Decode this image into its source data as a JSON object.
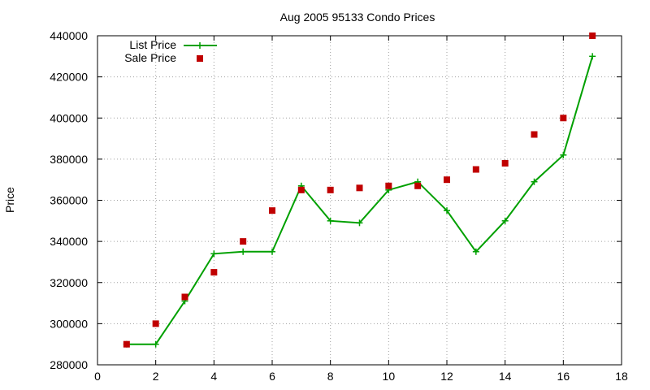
{
  "chart_data": {
    "type": "line",
    "title": "Aug 2005 95133 Condo Prices",
    "xlabel": "",
    "ylabel": "Price",
    "xlim": [
      0,
      18
    ],
    "ylim": [
      280000,
      440000
    ],
    "x_ticks": [
      0,
      2,
      4,
      6,
      8,
      10,
      12,
      14,
      16,
      18
    ],
    "y_ticks": [
      280000,
      300000,
      320000,
      340000,
      360000,
      380000,
      400000,
      420000,
      440000
    ],
    "grid": true,
    "legend_position": "top-left",
    "series": [
      {
        "name": "List Price",
        "style": "linespoints",
        "marker": "plus",
        "color": "#00a000",
        "x": [
          1,
          2,
          3,
          4,
          5,
          6,
          7,
          8,
          9,
          10,
          11,
          12,
          13,
          14,
          15,
          16,
          17
        ],
        "values": [
          290000,
          290000,
          311000,
          334000,
          335000,
          335000,
          367000,
          350000,
          349000,
          365000,
          369000,
          355000,
          335000,
          350000,
          369000,
          382000,
          430000
        ]
      },
      {
        "name": "Sale Price",
        "style": "points",
        "marker": "square",
        "color": "#c00000",
        "x": [
          1,
          2,
          3,
          4,
          5,
          6,
          7,
          8,
          9,
          10,
          11,
          12,
          13,
          14,
          15,
          16,
          17
        ],
        "values": [
          290000,
          300000,
          313000,
          325000,
          340000,
          355000,
          365000,
          365000,
          366000,
          367000,
          367000,
          370000,
          375000,
          378000,
          392000,
          400000,
          440000
        ]
      }
    ]
  }
}
